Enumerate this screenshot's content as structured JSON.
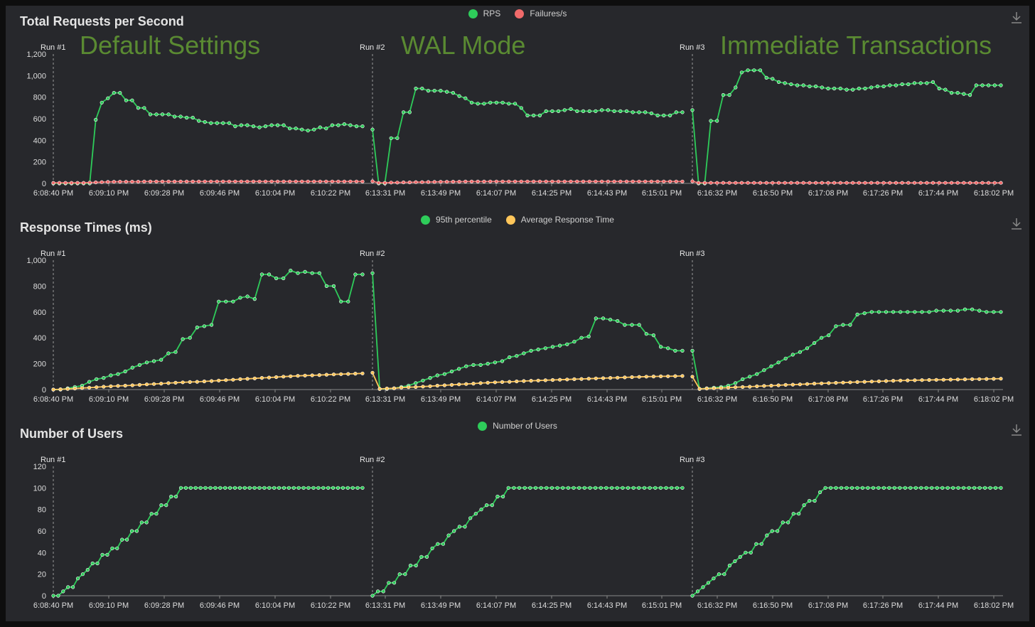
{
  "colors": {
    "green": "#2ecc5a",
    "red": "#f06a6a",
    "yellow": "#ffc65a",
    "axis": "#8a8a8a",
    "text": "#dddddd"
  },
  "run_labels": [
    "Run #1",
    "Run #2",
    "Run #3"
  ],
  "big_labels": [
    "Default Settings",
    "WAL Mode",
    "Immediate Transactions"
  ],
  "x_tick_labels": [
    "6:08:40 PM",
    "6:09:10 PM",
    "6:09:28 PM",
    "6:09:46 PM",
    "6:10:04 PM",
    "6:10:22 PM",
    "6:13:31 PM",
    "6:13:49 PM",
    "6:14:07 PM",
    "6:14:25 PM",
    "6:14:43 PM",
    "6:15:01 PM",
    "6:16:32 PM",
    "6:16:50 PM",
    "6:17:08 PM",
    "6:17:26 PM",
    "6:17:44 PM",
    "6:18:02 PM"
  ],
  "chart_data": [
    {
      "type": "line",
      "title": "Total Requests per Second",
      "ylim": [
        0,
        1200
      ],
      "yticks": [
        "0",
        "200",
        "400",
        "600",
        "800",
        "1,000",
        "1,200"
      ],
      "legend": [
        "RPS",
        "Failures/s"
      ],
      "runs": [
        {
          "series": [
            {
              "name": "RPS",
              "color": "green",
              "values": [
                0,
                0,
                0,
                0,
                0,
                0,
                0,
                590,
                750,
                790,
                840,
                840,
                770,
                770,
                700,
                700,
                640,
                640,
                640,
                640,
                620,
                620,
                610,
                610,
                580,
                570,
                560,
                560,
                560,
                560,
                530,
                540,
                540,
                530,
                520,
                530,
                540,
                540,
                540,
                510,
                510,
                500,
                490,
                500,
                520,
                510,
                540,
                540,
                550,
                540,
                530,
                530
              ]
            },
            {
              "name": "Failures/s",
              "color": "red",
              "values": [
                5,
                5,
                5,
                5,
                5,
                5,
                8,
                10,
                12,
                14,
                15,
                16,
                16,
                16,
                16,
                17,
                17,
                17,
                17,
                17,
                17,
                17,
                17,
                17,
                17,
                18,
                18,
                18,
                18,
                18,
                18,
                18,
                18,
                18,
                18,
                18,
                18,
                18,
                18,
                18,
                18,
                18,
                18,
                18,
                18,
                18,
                18,
                18,
                18,
                18,
                18,
                18
              ]
            }
          ]
        },
        {
          "series": [
            {
              "name": "RPS",
              "color": "green",
              "values": [
                500,
                0,
                0,
                420,
                420,
                660,
                660,
                880,
                880,
                860,
                860,
                860,
                850,
                840,
                810,
                790,
                750,
                740,
                740,
                750,
                750,
                750,
                740,
                740,
                700,
                630,
                630,
                630,
                670,
                670,
                670,
                680,
                690,
                670,
                670,
                670,
                670,
                680,
                680,
                670,
                670,
                670,
                660,
                660,
                660,
                650,
                630,
                630,
                630,
                660,
                660
              ]
            },
            {
              "name": "Failures/s",
              "color": "red",
              "values": [
                20,
                5,
                5,
                8,
                8,
                10,
                10,
                12,
                12,
                13,
                14,
                15,
                15,
                16,
                16,
                17,
                17,
                17,
                17,
                18,
                18,
                18,
                18,
                18,
                18,
                18,
                18,
                18,
                18,
                18,
                18,
                18,
                18,
                18,
                18,
                18,
                18,
                18,
                18,
                18,
                18,
                18,
                18,
                18,
                18,
                18,
                18,
                18,
                18,
                18,
                18
              ]
            }
          ]
        },
        {
          "series": [
            {
              "name": "RPS",
              "color": "green",
              "values": [
                680,
                0,
                0,
                580,
                580,
                820,
                820,
                890,
                1030,
                1050,
                1050,
                1050,
                980,
                970,
                940,
                930,
                920,
                910,
                910,
                900,
                900,
                890,
                880,
                880,
                880,
                870,
                870,
                880,
                880,
                890,
                900,
                900,
                910,
                910,
                920,
                920,
                930,
                930,
                930,
                940,
                880,
                870,
                840,
                840,
                830,
                820,
                910,
                910,
                910,
                910,
                910
              ]
            },
            {
              "name": "Failures/s",
              "color": "red",
              "values": [
                20,
                5,
                5,
                5,
                5,
                5,
                5,
                5,
                5,
                5,
                5,
                5,
                5,
                5,
                5,
                5,
                5,
                5,
                5,
                5,
                5,
                5,
                5,
                5,
                5,
                5,
                5,
                5,
                5,
                5,
                5,
                5,
                5,
                5,
                5,
                5,
                5,
                5,
                5,
                5,
                5,
                5,
                5,
                5,
                5,
                5,
                5,
                5,
                5,
                5,
                5
              ]
            }
          ]
        }
      ]
    },
    {
      "type": "line",
      "title": "Response Times (ms)",
      "ylim": [
        0,
        1000
      ],
      "yticks": [
        "0",
        "200",
        "400",
        "600",
        "800",
        "1,000"
      ],
      "legend": [
        "95th percentile",
        "Average Response Time"
      ],
      "runs": [
        {
          "series": [
            {
              "name": "95th percentile",
              "color": "green",
              "values": [
                0,
                0,
                10,
                20,
                30,
                60,
                80,
                90,
                110,
                120,
                140,
                170,
                190,
                210,
                220,
                230,
                280,
                290,
                390,
                400,
                480,
                490,
                500,
                680,
                680,
                680,
                710,
                720,
                700,
                890,
                890,
                860,
                860,
                920,
                900,
                910,
                900,
                900,
                800,
                800,
                680,
                680,
                890,
                890
              ]
            },
            {
              "name": "Average Response Time",
              "color": "yellow",
              "values": [
                0,
                2,
                5,
                8,
                12,
                15,
                18,
                22,
                25,
                28,
                30,
                33,
                36,
                40,
                43,
                46,
                50,
                53,
                56,
                58,
                60,
                63,
                66,
                70,
                73,
                76,
                80,
                83,
                86,
                90,
                93,
                96,
                100,
                103,
                106,
                108,
                110,
                112,
                115,
                117,
                119,
                121,
                123,
                125
              ]
            }
          ]
        },
        {
          "series": [
            {
              "name": "95th percentile",
              "color": "green",
              "values": [
                900,
                5,
                5,
                10,
                20,
                30,
                50,
                70,
                90,
                110,
                120,
                140,
                160,
                180,
                190,
                190,
                200,
                210,
                220,
                250,
                260,
                280,
                300,
                310,
                320,
                330,
                340,
                350,
                370,
                400,
                410,
                550,
                550,
                540,
                530,
                500,
                500,
                500,
                430,
                420,
                330,
                320,
                300,
                300
              ]
            },
            {
              "name": "Average Response Time",
              "color": "yellow",
              "values": [
                130,
                5,
                8,
                10,
                15,
                18,
                20,
                23,
                26,
                30,
                33,
                36,
                40,
                43,
                46,
                50,
                53,
                56,
                58,
                60,
                63,
                66,
                68,
                70,
                72,
                74,
                76,
                78,
                80,
                82,
                84,
                86,
                88,
                90,
                92,
                94,
                96,
                98,
                100,
                101,
                102,
                103,
                104,
                105
              ]
            }
          ]
        },
        {
          "series": [
            {
              "name": "95th percentile",
              "color": "green",
              "values": [
                300,
                5,
                10,
                15,
                20,
                30,
                50,
                80,
                100,
                120,
                150,
                180,
                210,
                240,
                270,
                290,
                320,
                360,
                400,
                420,
                490,
                500,
                500,
                580,
                590,
                600,
                600,
                600,
                600,
                600,
                600,
                600,
                600,
                600,
                610,
                610,
                610,
                610,
                620,
                620,
                610,
                600,
                600,
                600
              ]
            },
            {
              "name": "Average Response Time",
              "color": "yellow",
              "values": [
                100,
                5,
                8,
                10,
                12,
                15,
                18,
                20,
                22,
                25,
                28,
                30,
                33,
                36,
                38,
                40,
                43,
                46,
                48,
                50,
                52,
                54,
                56,
                58,
                60,
                62,
                64,
                66,
                68,
                70,
                71,
                72,
                73,
                74,
                75,
                76,
                77,
                78,
                79,
                80,
                81,
                82,
                83,
                84
              ]
            }
          ]
        }
      ]
    },
    {
      "type": "line",
      "title": "Number of Users",
      "ylim": [
        0,
        120
      ],
      "yticks": [
        "0",
        "20",
        "40",
        "60",
        "80",
        "100",
        "120"
      ],
      "legend": [
        "Number of Users"
      ],
      "runs": [
        {
          "series": [
            {
              "name": "Number of Users",
              "color": "green",
              "values": [
                0,
                0,
                4,
                8,
                8,
                16,
                20,
                24,
                30,
                30,
                38,
                38,
                44,
                44,
                52,
                52,
                60,
                60,
                68,
                68,
                76,
                76,
                84,
                84,
                92,
                92,
                100,
                100,
                100,
                100,
                100,
                100,
                100,
                100,
                100,
                100,
                100,
                100,
                100,
                100,
                100,
                100,
                100,
                100,
                100,
                100,
                100,
                100,
                100,
                100,
                100,
                100,
                100,
                100,
                100,
                100,
                100,
                100,
                100,
                100,
                100,
                100,
                100,
                100
              ]
            }
          ]
        },
        {
          "series": [
            {
              "name": "Number of Users",
              "color": "green",
              "values": [
                0,
                4,
                4,
                12,
                12,
                20,
                20,
                28,
                28,
                36,
                36,
                44,
                48,
                48,
                56,
                60,
                64,
                64,
                72,
                76,
                80,
                84,
                84,
                92,
                92,
                100,
                100,
                100,
                100,
                100,
                100,
                100,
                100,
                100,
                100,
                100,
                100,
                100,
                100,
                100,
                100,
                100,
                100,
                100,
                100,
                100,
                100,
                100,
                100,
                100,
                100,
                100,
                100,
                100,
                100,
                100,
                100,
                100
              ]
            }
          ]
        },
        {
          "series": [
            {
              "name": "Number of Users",
              "color": "green",
              "values": [
                0,
                4,
                8,
                12,
                16,
                20,
                20,
                28,
                32,
                36,
                40,
                40,
                48,
                48,
                56,
                60,
                60,
                68,
                68,
                76,
                76,
                84,
                88,
                88,
                96,
                100,
                100,
                100,
                100,
                100,
                100,
                100,
                100,
                100,
                100,
                100,
                100,
                100,
                100,
                100,
                100,
                100,
                100,
                100,
                100,
                100,
                100,
                100,
                100,
                100,
                100,
                100,
                100,
                100,
                100,
                100,
                100,
                100,
                100
              ]
            }
          ]
        }
      ]
    }
  ]
}
